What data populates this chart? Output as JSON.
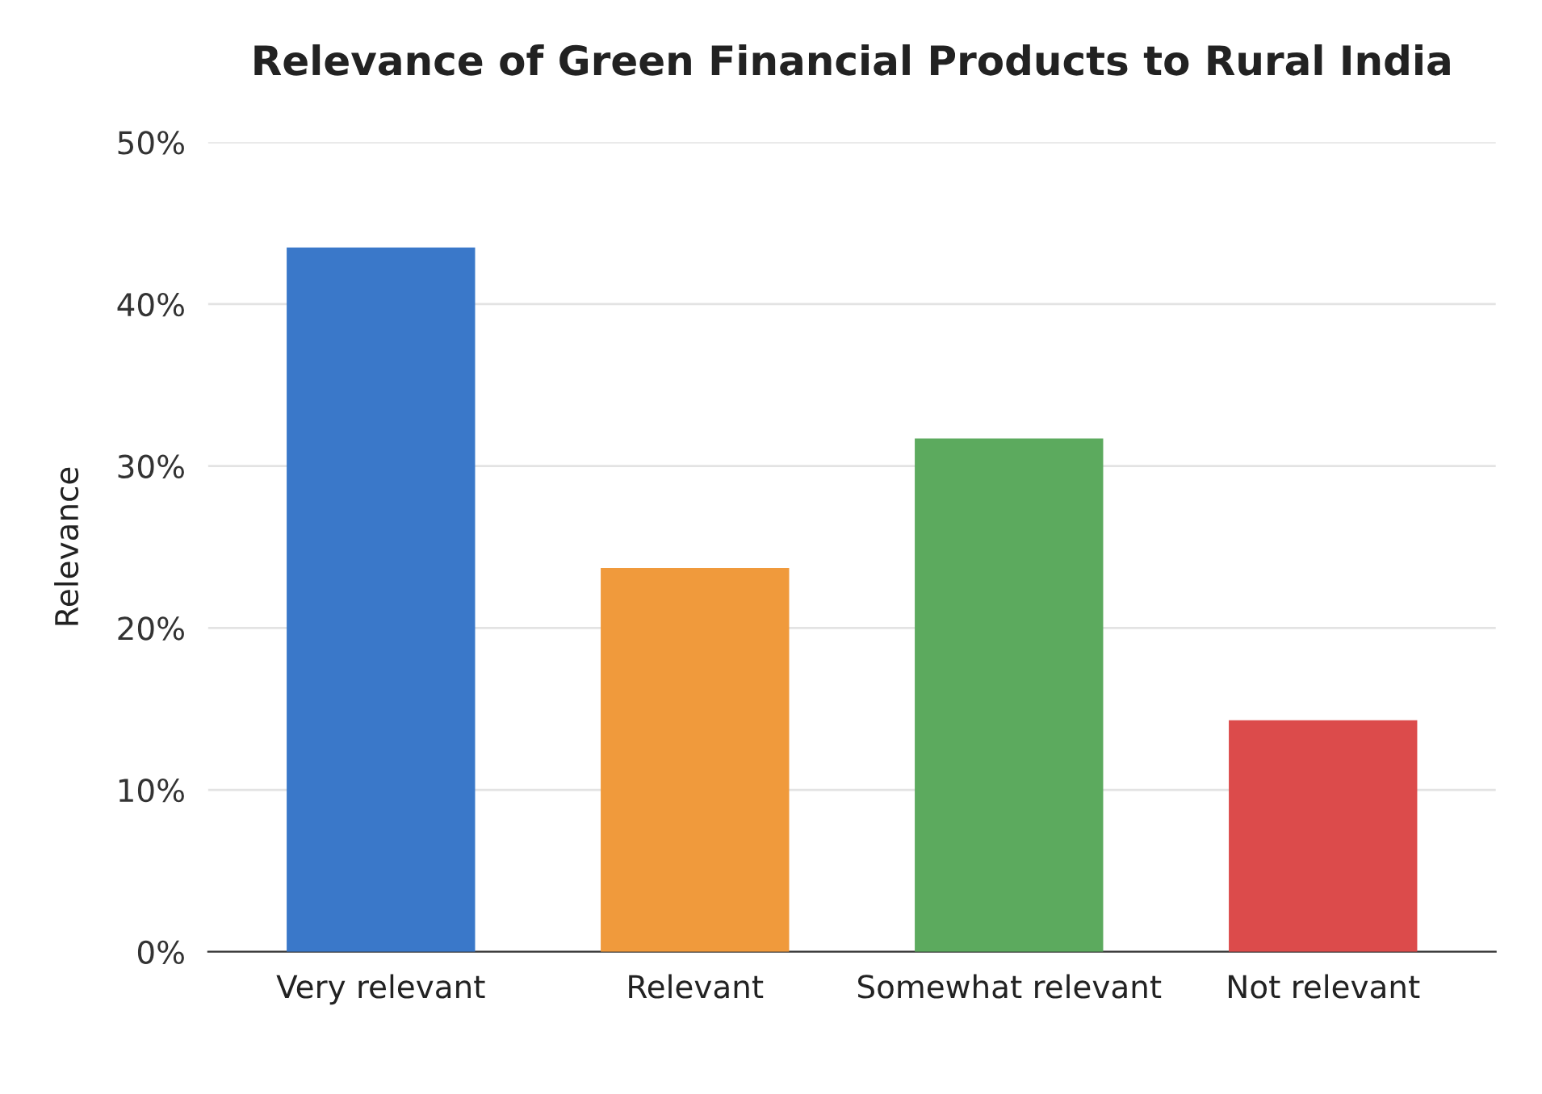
{
  "chart_data": {
    "type": "bar",
    "title": "Relevance of Green Financial Products to Rural India",
    "ylabel": "Relevance",
    "categories": [
      "Very relevant",
      "Relevant",
      "Somewhat relevant",
      "Not relevant"
    ],
    "values": [
      43.5,
      23.7,
      31.7,
      14.3
    ],
    "colors": [
      "#3a78c9",
      "#f09a3c",
      "#5caa5e",
      "#dc4b4b"
    ],
    "ylim": [
      0,
      50
    ],
    "yticks": [
      {
        "value": 0,
        "label": "0%"
      },
      {
        "value": 10,
        "label": "10%"
      },
      {
        "value": 20,
        "label": "20%"
      },
      {
        "value": 30,
        "label": "30%"
      },
      {
        "value": 40,
        "label": "40%"
      },
      {
        "value": 50,
        "label": "50%"
      }
    ],
    "grid": "y",
    "legend": false
  }
}
